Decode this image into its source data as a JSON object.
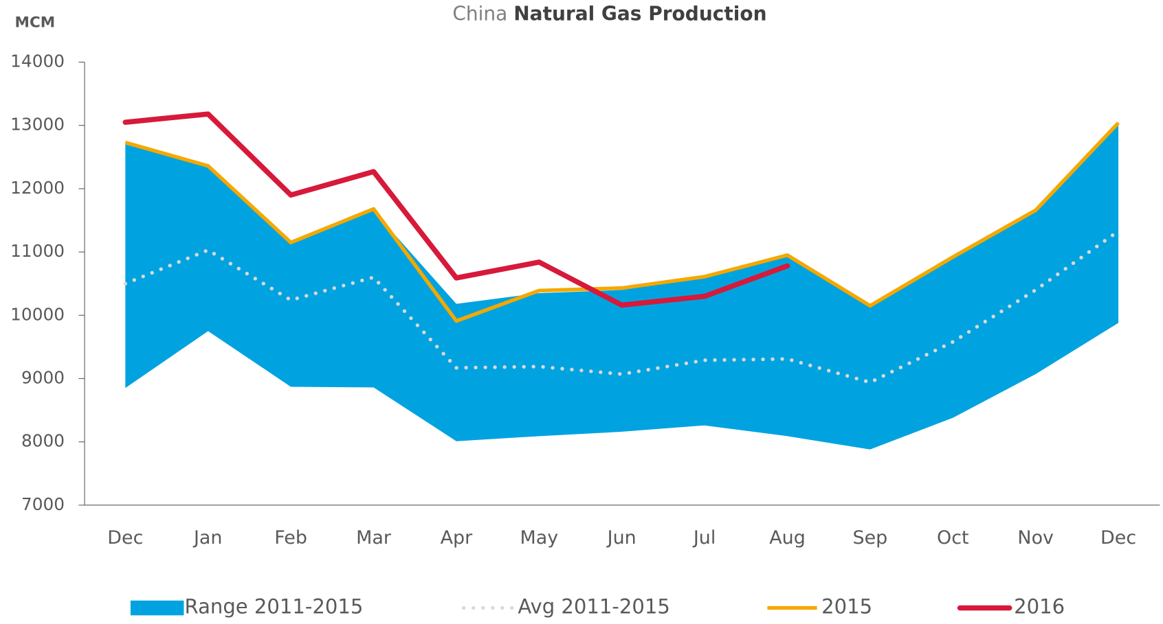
{
  "chart_data": {
    "type": "line",
    "title_prefix": "China",
    "title": "Natural Gas Production",
    "y_label": "MCM",
    "categories": [
      "Dec",
      "Jan",
      "Feb",
      "Mar",
      "Apr",
      "May",
      "Jun",
      "Jul",
      "Aug",
      "Sep",
      "Oct",
      "Nov",
      "Dec"
    ],
    "ylim": [
      7000,
      14000
    ],
    "yticks": [
      7000,
      8000,
      9000,
      10000,
      11000,
      12000,
      13000,
      14000
    ],
    "legend": "bottom",
    "series": [
      {
        "name": "Range 2011-2015",
        "color": "#00a3e0",
        "kind": "band",
        "values": [
          12700,
          12350,
          11150,
          11650,
          10180,
          10350,
          10400,
          10600,
          10950,
          10150,
          10900,
          11650,
          13050
        ],
        "low": [
          8850,
          9750,
          8870,
          8860,
          8010,
          8090,
          8160,
          8260,
          8090,
          7880,
          8380,
          9070,
          9880
        ]
      },
      {
        "name": "Avg 2011-2015",
        "color": "#d9d9d9",
        "kind": "dotted",
        "values": [
          10500,
          11030,
          10240,
          10600,
          9170,
          9190,
          9070,
          9290,
          9310,
          8940,
          9580,
          10400,
          11330
        ]
      },
      {
        "name": "2015",
        "color": "#f5a800",
        "kind": "line",
        "values": [
          12730,
          12360,
          11150,
          11680,
          9910,
          10390,
          10430,
          10610,
          10950,
          10150,
          10920,
          11660,
          13040
        ]
      },
      {
        "name": "2016",
        "color": "#d7193a",
        "kind": "thick",
        "values": [
          13050,
          13180,
          11900,
          12270,
          10590,
          10840,
          10160,
          10300,
          10780,
          null,
          null,
          null,
          null
        ]
      }
    ]
  }
}
